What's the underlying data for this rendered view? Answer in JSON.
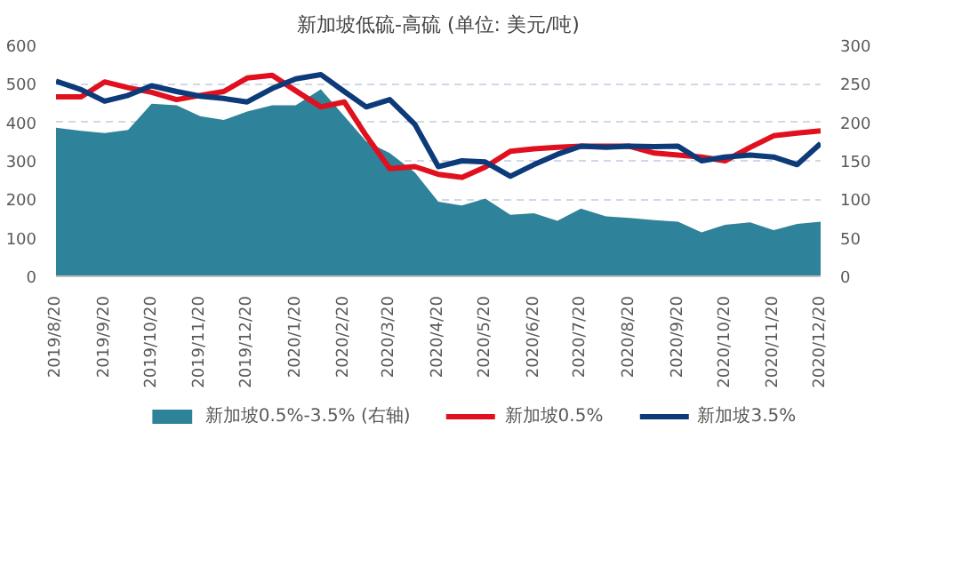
{
  "chart_data": {
    "type": "line",
    "title": "新加坡低硫-高硫 (单位: 美元/吨)",
    "x": [
      "2019-08-20",
      "2019-09-05",
      "2019-09-20",
      "2019-10-05",
      "2019-10-20",
      "2019-11-05",
      "2019-11-20",
      "2019-12-05",
      "2019-12-20",
      "2020-01-05",
      "2020-01-20",
      "2020-02-05",
      "2020-02-20",
      "2020-03-05",
      "2020-03-20",
      "2020-04-05",
      "2020-04-20",
      "2020-05-05",
      "2020-05-20",
      "2020-06-05",
      "2020-06-20",
      "2020-07-05",
      "2020-07-20",
      "2020-08-05",
      "2020-08-20",
      "2020-09-05",
      "2020-09-20",
      "2020-10-05",
      "2020-10-20",
      "2020-11-05",
      "2020-11-20",
      "2020-12-05",
      "2020-12-20"
    ],
    "series": [
      {
        "name": "新加坡0.5%-3.5% (右轴)",
        "type": "area",
        "axis": "y2",
        "color": "#2e8299",
        "values": [
          193,
          189,
          186,
          190,
          224,
          222,
          208,
          203,
          214,
          222,
          222,
          243,
          208,
          175,
          160,
          135,
          97,
          92,
          101,
          80,
          82,
          72,
          88,
          78,
          76,
          73,
          71,
          57,
          67,
          70,
          60,
          68,
          71
        ]
      },
      {
        "name": "新加坡0.5%",
        "color": "#e0101e",
        "values": [
          466,
          466,
          505,
          490,
          478,
          459,
          470,
          480,
          515,
          522,
          482,
          440,
          453,
          365,
          280,
          285,
          265,
          257,
          284,
          325,
          331,
          335,
          338,
          338,
          338,
          320,
          315,
          310,
          300,
          335,
          365,
          372,
          378
        ]
      },
      {
        "name": "新加坡3.5%",
        "color": "#0d3a78",
        "values": [
          507,
          485,
          455,
          470,
          495,
          480,
          468,
          462,
          453,
          488,
          513,
          524,
          480,
          440,
          459,
          395,
          285,
          300,
          297,
          260,
          290,
          317,
          338,
          335,
          338,
          337,
          338,
          300,
          310,
          315,
          310,
          290,
          345
        ]
      }
    ],
    "xlim": [
      "2019-08-20",
      "2020-12-20"
    ],
    "xticks": [
      {
        "value": "2019-08-20",
        "label": "2019/8/20"
      },
      {
        "value": "2019-09-20",
        "label": "2019/9/20"
      },
      {
        "value": "2019-10-20",
        "label": "2019/10/20"
      },
      {
        "value": "2019-11-20",
        "label": "2019/11/20"
      },
      {
        "value": "2019-12-20",
        "label": "2019/12/20"
      },
      {
        "value": "2020-01-20",
        "label": "2020/1/20"
      },
      {
        "value": "2020-02-20",
        "label": "2020/2/20"
      },
      {
        "value": "2020-03-20",
        "label": "2020/3/20"
      },
      {
        "value": "2020-04-20",
        "label": "2020/4/20"
      },
      {
        "value": "2020-05-20",
        "label": "2020/5/20"
      },
      {
        "value": "2020-06-20",
        "label": "2020/6/20"
      },
      {
        "value": "2020-07-20",
        "label": "2020/7/20"
      },
      {
        "value": "2020-08-20",
        "label": "2020/8/20"
      },
      {
        "value": "2020-09-20",
        "label": "2020/9/20"
      },
      {
        "value": "2020-10-20",
        "label": "2020/10/20"
      },
      {
        "value": "2020-11-20",
        "label": "2020/11/20"
      },
      {
        "value": "2020-12-20",
        "label": "2020/12/20"
      }
    ],
    "ylim": [
      0,
      600
    ],
    "yticks": [
      0,
      100,
      200,
      300,
      400,
      500,
      600
    ],
    "y2lim": [
      0,
      300
    ],
    "y2ticks": [
      0,
      50,
      100,
      150,
      200,
      250,
      300
    ],
    "grid": "y",
    "legend": "bottom",
    "line_style": "solid",
    "marker": "none"
  }
}
